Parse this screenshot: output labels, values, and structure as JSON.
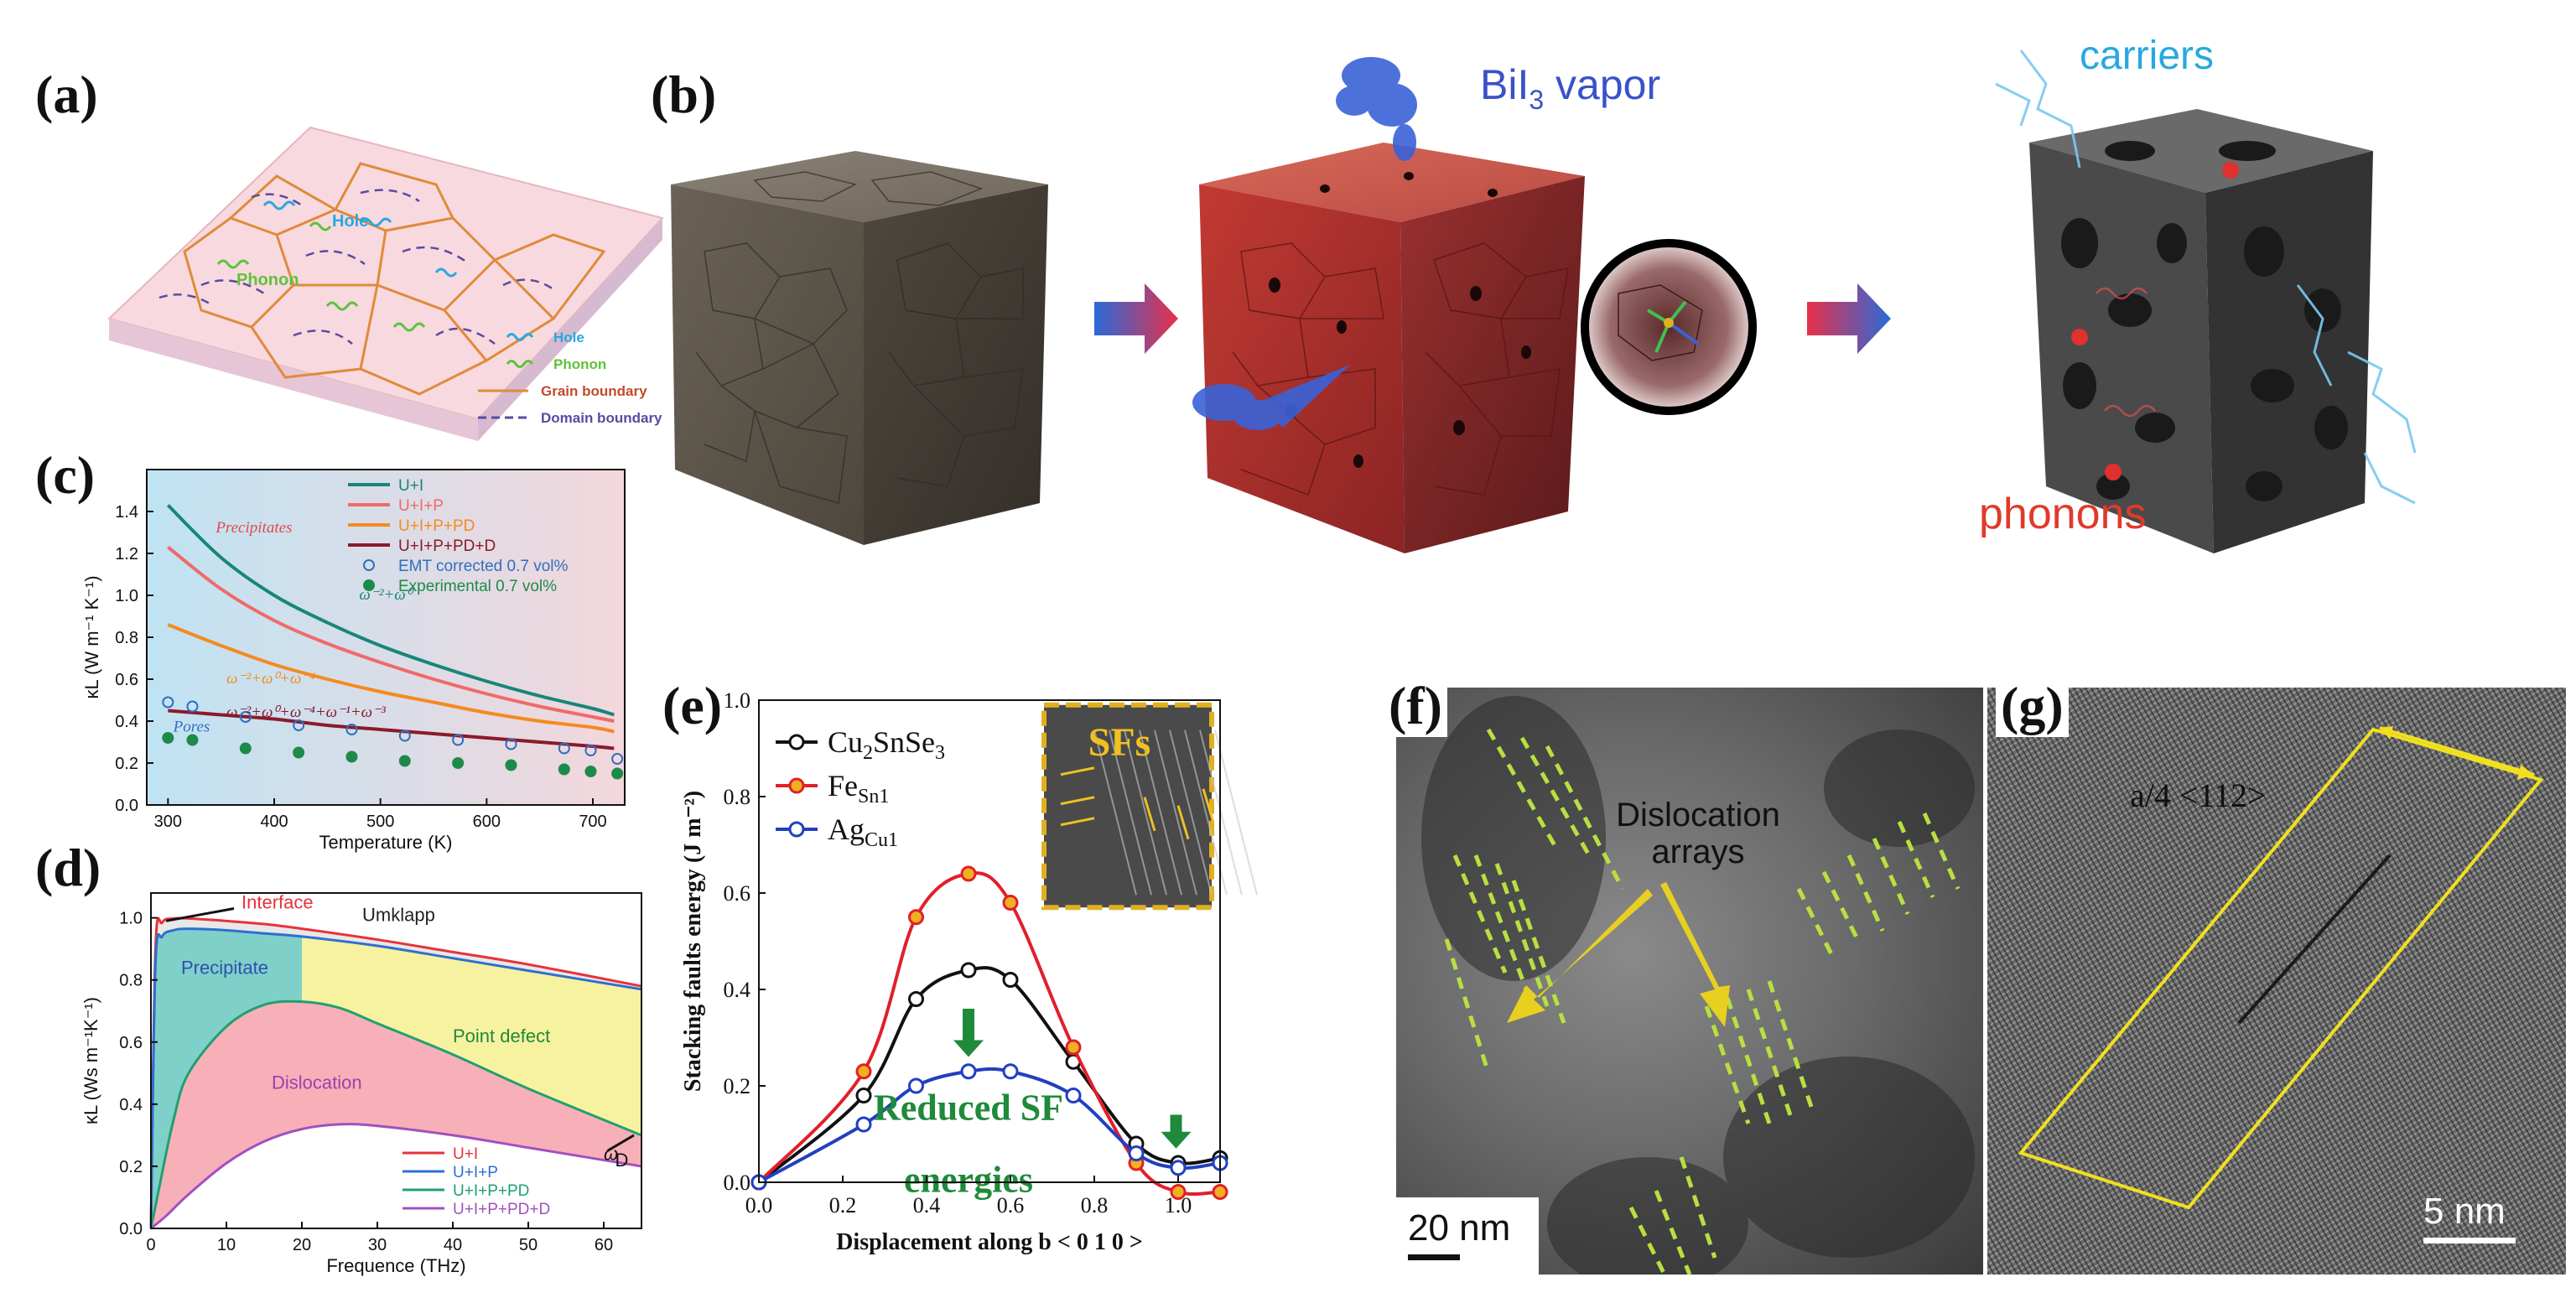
{
  "panels": {
    "a": {
      "label": "(a)",
      "inner_labels": {
        "hole": "Hole",
        "phonon": "Phonon"
      },
      "legend": [
        "Hole",
        "Phonon",
        "Grain boundary",
        "Domain boundary"
      ],
      "colors": {
        "hole": "#29a8e0",
        "phonon": "#5fc23a",
        "grain": "#e08a3a",
        "domain": "#5a4aa0",
        "slab": "#f8d9df"
      }
    },
    "b": {
      "label": "(b)",
      "vapor_label": "BiI",
      "vapor_sub": "3",
      "vapor_suffix": " vapor",
      "carriers_label": "carriers",
      "phonons_label": "phonons",
      "colors": {
        "carriers": "#29a8e0",
        "phonons": "#e03a2a",
        "vapor": "#3a52c8"
      }
    },
    "f": {
      "label": "(f)",
      "annotation_1": "Dislocation",
      "annotation_2": "arrays",
      "scale": "20 nm"
    },
    "g": {
      "label": "(g)",
      "annotation": "a/4 <112>",
      "scale": "5 nm"
    }
  },
  "chart_data": [
    {
      "id": "c",
      "panel_label": "(c)",
      "type": "line",
      "xlabel": "Temperature (K)",
      "ylabel": "κL (W m⁻¹ K⁻¹)",
      "xlim": [
        280,
        730
      ],
      "ylim": [
        0.0,
        1.6
      ],
      "xticks": [
        300,
        400,
        500,
        600,
        700
      ],
      "yticks": [
        0.0,
        0.2,
        0.4,
        0.6,
        0.8,
        1.0,
        1.2,
        1.4
      ],
      "legend_position": "top-right",
      "series": [
        {
          "name": "U+I",
          "color": "#17867a",
          "x": [
            300,
            350,
            400,
            450,
            500,
            550,
            600,
            650,
            700,
            720
          ],
          "y": [
            1.43,
            1.18,
            1.0,
            0.87,
            0.76,
            0.67,
            0.59,
            0.52,
            0.46,
            0.43
          ]
        },
        {
          "name": "U+I+P",
          "color": "#f06a6a",
          "x": [
            300,
            350,
            400,
            450,
            500,
            550,
            600,
            650,
            700,
            720
          ],
          "y": [
            1.23,
            1.03,
            0.88,
            0.77,
            0.68,
            0.6,
            0.53,
            0.47,
            0.42,
            0.4
          ]
        },
        {
          "name": "U+I+P+PD",
          "color": "#f58a1f",
          "x": [
            300,
            350,
            400,
            450,
            500,
            550,
            600,
            650,
            700,
            720
          ],
          "y": [
            0.86,
            0.76,
            0.67,
            0.6,
            0.54,
            0.49,
            0.44,
            0.4,
            0.37,
            0.35
          ]
        },
        {
          "name": "U+I+P+PD+D",
          "color": "#8a1a2a",
          "x": [
            300,
            350,
            400,
            450,
            500,
            550,
            600,
            650,
            700,
            720
          ],
          "y": [
            0.45,
            0.43,
            0.41,
            0.38,
            0.36,
            0.34,
            0.32,
            0.3,
            0.28,
            0.27
          ]
        }
      ],
      "scatter": [
        {
          "name": "EMT corrected 0.7 vol%",
          "color": "#2f6fc0",
          "filled": false,
          "x": [
            300,
            323,
            373,
            423,
            473,
            523,
            573,
            623,
            673,
            698,
            723
          ],
          "y": [
            0.49,
            0.47,
            0.42,
            0.38,
            0.36,
            0.33,
            0.31,
            0.29,
            0.27,
            0.26,
            0.22
          ]
        },
        {
          "name": "Experimental   0.7 vol%",
          "color": "#1e8a4a",
          "filled": true,
          "x": [
            300,
            323,
            373,
            423,
            473,
            523,
            573,
            623,
            673,
            698,
            723
          ],
          "y": [
            0.32,
            0.31,
            0.27,
            0.25,
            0.23,
            0.21,
            0.2,
            0.19,
            0.17,
            0.16,
            0.15
          ]
        }
      ],
      "annotations": [
        {
          "text": "Precipitates",
          "x": 345,
          "y": 1.3,
          "color": "#e04a4a"
        },
        {
          "text": "Pores",
          "x": 305,
          "y": 0.35,
          "color": "#2f6fc0"
        },
        {
          "text": "ω⁻²+ω⁰",
          "x": 480,
          "y": 0.98,
          "color": "#17867a"
        },
        {
          "text": "ω⁻²+ω⁰+ω⁻⁴",
          "x": 355,
          "y": 0.58,
          "color": "#f58a1f"
        },
        {
          "text": "ω⁻²+ω⁰+ω⁻⁴+ω⁻¹+ω⁻³",
          "x": 355,
          "y": 0.42,
          "color": "#8a1a2a"
        }
      ],
      "background_gradient": [
        "#bfe3f3",
        "#f3d7dc"
      ]
    },
    {
      "id": "d",
      "panel_label": "(d)",
      "type": "area",
      "xlabel": "Frequence (THz)",
      "ylabel": "κL (Ws m⁻¹K⁻¹)",
      "xlim": [
        0,
        65
      ],
      "ylim": [
        0.0,
        1.08
      ],
      "xticks": [
        0,
        10,
        20,
        30,
        40,
        50,
        60
      ],
      "yticks": [
        0.0,
        0.2,
        0.4,
        0.6,
        0.8,
        1.0
      ],
      "legend_position": "bottom-right",
      "series": [
        {
          "name": "U+I",
          "color": "#e8323a",
          "x": [
            0,
            0.6,
            1.5,
            3,
            5,
            10,
            15,
            20,
            30,
            40,
            50,
            65
          ],
          "y": [
            0,
            0.9,
            0.985,
            0.998,
            0.998,
            0.99,
            0.98,
            0.965,
            0.93,
            0.89,
            0.85,
            0.78
          ]
        },
        {
          "name": "U+I+P",
          "color": "#2e6fd0",
          "x": [
            0,
            0.6,
            1.5,
            3,
            5,
            10,
            15,
            20,
            30,
            40,
            50,
            65
          ],
          "y": [
            0,
            0.85,
            0.94,
            0.96,
            0.965,
            0.96,
            0.95,
            0.94,
            0.91,
            0.87,
            0.83,
            0.77
          ]
        },
        {
          "name": "U+I+P+PD",
          "color": "#20a070",
          "x": [
            0,
            1,
            3,
            5,
            10,
            15,
            20,
            25,
            30,
            40,
            50,
            65
          ],
          "y": [
            0,
            0.12,
            0.35,
            0.5,
            0.65,
            0.72,
            0.73,
            0.71,
            0.66,
            0.56,
            0.45,
            0.3
          ]
        },
        {
          "name": "U+I+P+PD+D",
          "color": "#a050c0",
          "x": [
            0,
            2,
            5,
            10,
            15,
            20,
            25,
            30,
            40,
            50,
            65
          ],
          "y": [
            0,
            0.04,
            0.11,
            0.21,
            0.28,
            0.32,
            0.335,
            0.33,
            0.3,
            0.26,
            0.2
          ]
        }
      ],
      "region_labels": [
        {
          "text": "Interface",
          "x": 12,
          "y": 1.03,
          "color": "#e8323a"
        },
        {
          "text": "Umklapp",
          "x": 28,
          "y": 0.99,
          "color": "#222222"
        },
        {
          "text": "Precipitate",
          "x": 4,
          "y": 0.82,
          "color": "#2e4fb0"
        },
        {
          "text": "Point defect",
          "x": 40,
          "y": 0.6,
          "color": "#1e8a3a"
        },
        {
          "text": "Dislocation",
          "x": 16,
          "y": 0.45,
          "color": "#9a40b0"
        },
        {
          "text": "ω",
          "x": 60,
          "y": 0.22,
          "color": "#111111"
        },
        {
          "text": "D",
          "x": 61.5,
          "y": 0.2,
          "color": "#111111"
        }
      ],
      "fills": {
        "interface": "#e8e8e8",
        "precipitate": "#7fd0c8",
        "point_defect": "#f7f2a0",
        "dislocation": "#f8b0b8",
        "white": "#ffffff"
      }
    },
    {
      "id": "e",
      "panel_label": "(e)",
      "type": "line",
      "xlabel": "Displacement along b < 0 1 0 >",
      "ylabel": "Stacking faults energy (J m⁻²)",
      "xlim": [
        0.0,
        1.1
      ],
      "ylim": [
        0.0,
        1.0
      ],
      "xticks": [
        0.0,
        0.2,
        0.4,
        0.6,
        0.8,
        1.0
      ],
      "yticks": [
        0.0,
        0.2,
        0.4,
        0.6,
        0.8,
        1.0
      ],
      "legend_position": "top-left",
      "series": [
        {
          "name": "Cu2SnSe3",
          "label_main": "Cu",
          "label_sub1": "2",
          "label_mid": "SnSe",
          "label_sub2": "3",
          "color": "#111111",
          "marker_fill": "#ffffff",
          "x": [
            0.0,
            0.25,
            0.375,
            0.5,
            0.6,
            0.75,
            0.9,
            1.0,
            1.1
          ],
          "y": [
            0.0,
            0.18,
            0.38,
            0.44,
            0.42,
            0.25,
            0.08,
            0.04,
            0.05
          ]
        },
        {
          "name": "FeSn1",
          "label_main": "Fe",
          "label_sub1": "Sn1",
          "label_mid": "",
          "label_sub2": "",
          "color": "#e0202a",
          "marker_fill": "#f0b020",
          "x": [
            0.0,
            0.25,
            0.375,
            0.5,
            0.6,
            0.75,
            0.9,
            1.0,
            1.1
          ],
          "y": [
            0.0,
            0.23,
            0.55,
            0.64,
            0.58,
            0.28,
            0.04,
            -0.02,
            -0.02
          ]
        },
        {
          "name": "AgCu1",
          "label_main": "Ag",
          "label_sub1": "Cu1",
          "label_mid": "",
          "label_sub2": "",
          "color": "#2040c0",
          "marker_fill": "#ffffff",
          "x": [
            0.0,
            0.25,
            0.375,
            0.5,
            0.6,
            0.75,
            0.9,
            1.0,
            1.1
          ],
          "y": [
            0.0,
            0.12,
            0.2,
            0.23,
            0.23,
            0.18,
            0.06,
            0.03,
            0.04
          ]
        }
      ],
      "annotations": [
        {
          "text": "Reduced SF",
          "x": 0.5,
          "y": 0.13,
          "color": "#1e8a3a"
        },
        {
          "text": "energies",
          "x": 0.5,
          "y": -0.02,
          "color": "#1e8a3a"
        }
      ],
      "inset": {
        "label": "SFs",
        "label_color": "#f0c020",
        "border": "#e0b020"
      }
    }
  ]
}
